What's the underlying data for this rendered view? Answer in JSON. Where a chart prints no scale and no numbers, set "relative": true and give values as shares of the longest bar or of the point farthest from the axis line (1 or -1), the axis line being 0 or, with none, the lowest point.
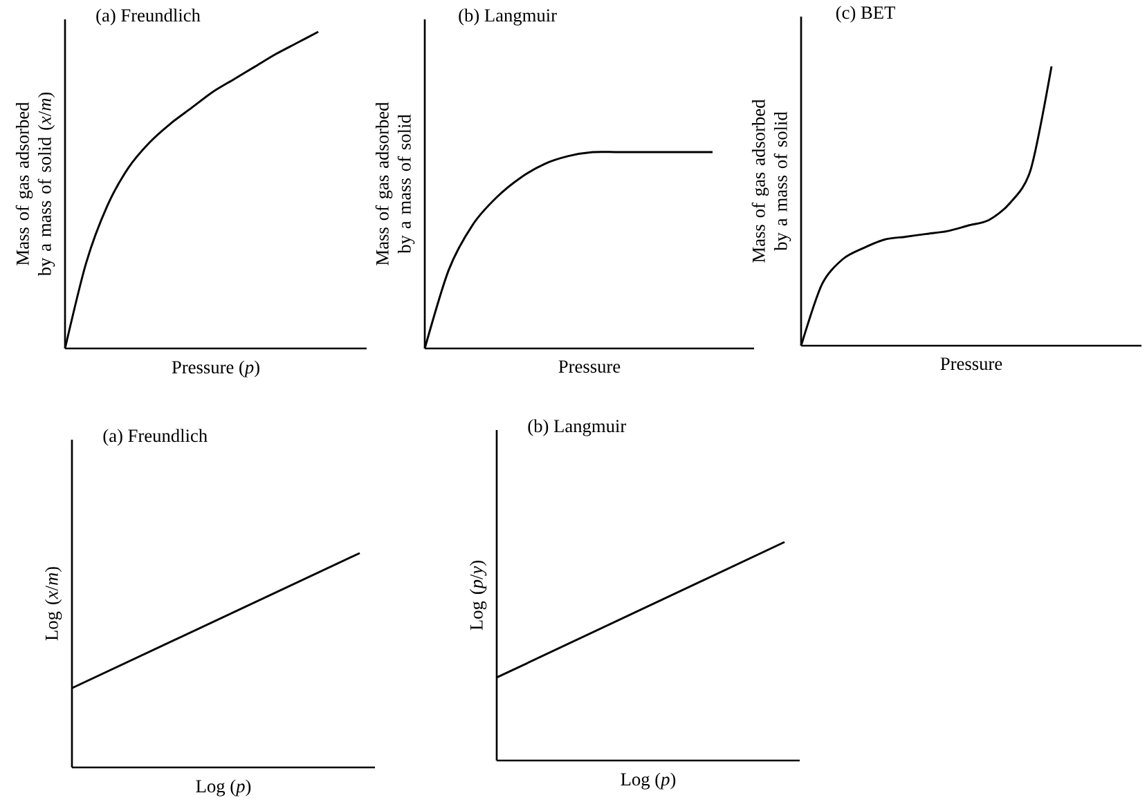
{
  "chart_data": [
    {
      "type": "line",
      "title": "(a) Freundlich",
      "xlabel": "Pressure (*p*)",
      "ylabel": "Mass of gas adsorbed by a mass of solid (*x*/*m*)",
      "relative": true,
      "tick_labels": false,
      "color": "#000000",
      "categories": [
        null,
        null,
        null,
        null,
        null,
        null,
        null,
        null,
        null,
        null,
        null,
        null,
        null
      ],
      "values": [
        0,
        0.27,
        0.45,
        0.57,
        0.65,
        0.71,
        0.76,
        0.81,
        0.85,
        0.89,
        0.93,
        0.965,
        1
      ]
    },
    {
      "type": "line",
      "title": "(b) Langmuir",
      "xlabel": "Pressure",
      "ylabel": "Mass of gas adsorbed by a mass of solid",
      "relative": true,
      "tick_labels": false,
      "color": "#000000",
      "categories": [
        null,
        null,
        null,
        null,
        null,
        null,
        null,
        null,
        null,
        null,
        null,
        null,
        null
      ],
      "values": [
        0,
        0.4,
        0.63,
        0.77,
        0.87,
        0.94,
        0.98,
        1,
        1,
        1,
        1,
        1,
        1
      ]
    },
    {
      "type": "line",
      "title": "(c) BET",
      "xlabel": "Pressure",
      "ylabel": "Mass of gas adsorbed by a mass of solid",
      "relative": true,
      "tick_labels": false,
      "color": "#000000",
      "categories": [
        null,
        null,
        null,
        null,
        null,
        null,
        null,
        null,
        null,
        null,
        null,
        null,
        null
      ],
      "values": [
        0,
        0.22,
        0.31,
        0.35,
        0.38,
        0.39,
        0.4,
        0.41,
        0.43,
        0.45,
        0.51,
        0.63,
        1
      ]
    },
    {
      "type": "line",
      "title": "(a) Freundlich",
      "xlabel": "Log (*p*)",
      "ylabel": "Log (*x*/*m*)",
      "relative": true,
      "tick_labels": false,
      "color": "#000000",
      "categories": [
        null,
        null
      ],
      "values": [
        0.37,
        1
      ]
    },
    {
      "type": "line",
      "title": "(b) Langmuir",
      "xlabel": "Log (*p*)",
      "ylabel": "Log (*p*/*y*)",
      "relative": true,
      "tick_labels": false,
      "color": "#000000",
      "categories": [
        null,
        null
      ],
      "values": [
        0.38,
        1
      ]
    }
  ]
}
